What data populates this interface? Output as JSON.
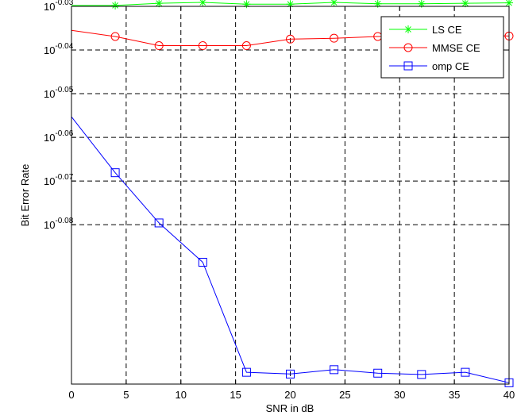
{
  "chart_data": {
    "type": "line",
    "title": "",
    "xlabel": "SNR in dB",
    "ylabel": "Bit Error Rate",
    "xlim": [
      0,
      40
    ],
    "ylim_log10": [
      -3.0,
      -3.0865
    ],
    "yscale": "log",
    "grid": true,
    "legend_placement": "top-right",
    "x_ticks": [
      0,
      5,
      10,
      15,
      20,
      25,
      30,
      35,
      40
    ],
    "y_ticks": [
      {
        "exp": -3.0,
        "base": "10",
        "sup": "-0.03"
      },
      {
        "exp": -3.01,
        "base": "10",
        "sup": "-0.04"
      },
      {
        "exp": -3.02,
        "base": "10",
        "sup": "-0.05"
      },
      {
        "exp": -3.03,
        "base": "10",
        "sup": "-0.06"
      },
      {
        "exp": -3.04,
        "base": "10",
        "sup": "-0.07"
      },
      {
        "exp": -3.05,
        "base": "10",
        "sup": "-0.08"
      }
    ],
    "series": [
      {
        "name": "LS CE",
        "color": "#00ff00",
        "marker": "asterisk",
        "x": [
          0,
          4,
          8,
          12,
          16,
          20,
          24,
          28,
          32,
          36,
          40
        ],
        "y_log10": [
          -2.9998,
          -2.9998,
          -2.9993,
          -2.9991,
          -2.9995,
          -2.9995,
          -2.9991,
          -2.9994,
          -2.9994,
          -2.9993,
          -2.9992
        ]
      },
      {
        "name": "MMSE CE",
        "color": "#ff0000",
        "marker": "circle",
        "x": [
          0,
          4,
          8,
          12,
          16,
          20,
          24,
          28,
          32,
          36,
          40
        ],
        "y_log10": [
          -3.0055,
          -3.0069,
          -3.009,
          -3.009,
          -3.009,
          -3.0075,
          -3.0073,
          -3.0069,
          -3.0068,
          -3.0066,
          -3.0068
        ]
      },
      {
        "name": "omp CE",
        "color": "#0000ff",
        "marker": "square",
        "x": [
          0,
          4,
          8,
          12,
          16,
          20,
          24,
          28,
          32,
          36,
          40
        ],
        "y_log10": [
          -3.0253,
          -3.0381,
          -3.0496,
          -3.0586,
          -3.0838,
          -3.0842,
          -3.0832,
          -3.084,
          -3.0843,
          -3.0838,
          -3.0862
        ]
      }
    ]
  }
}
